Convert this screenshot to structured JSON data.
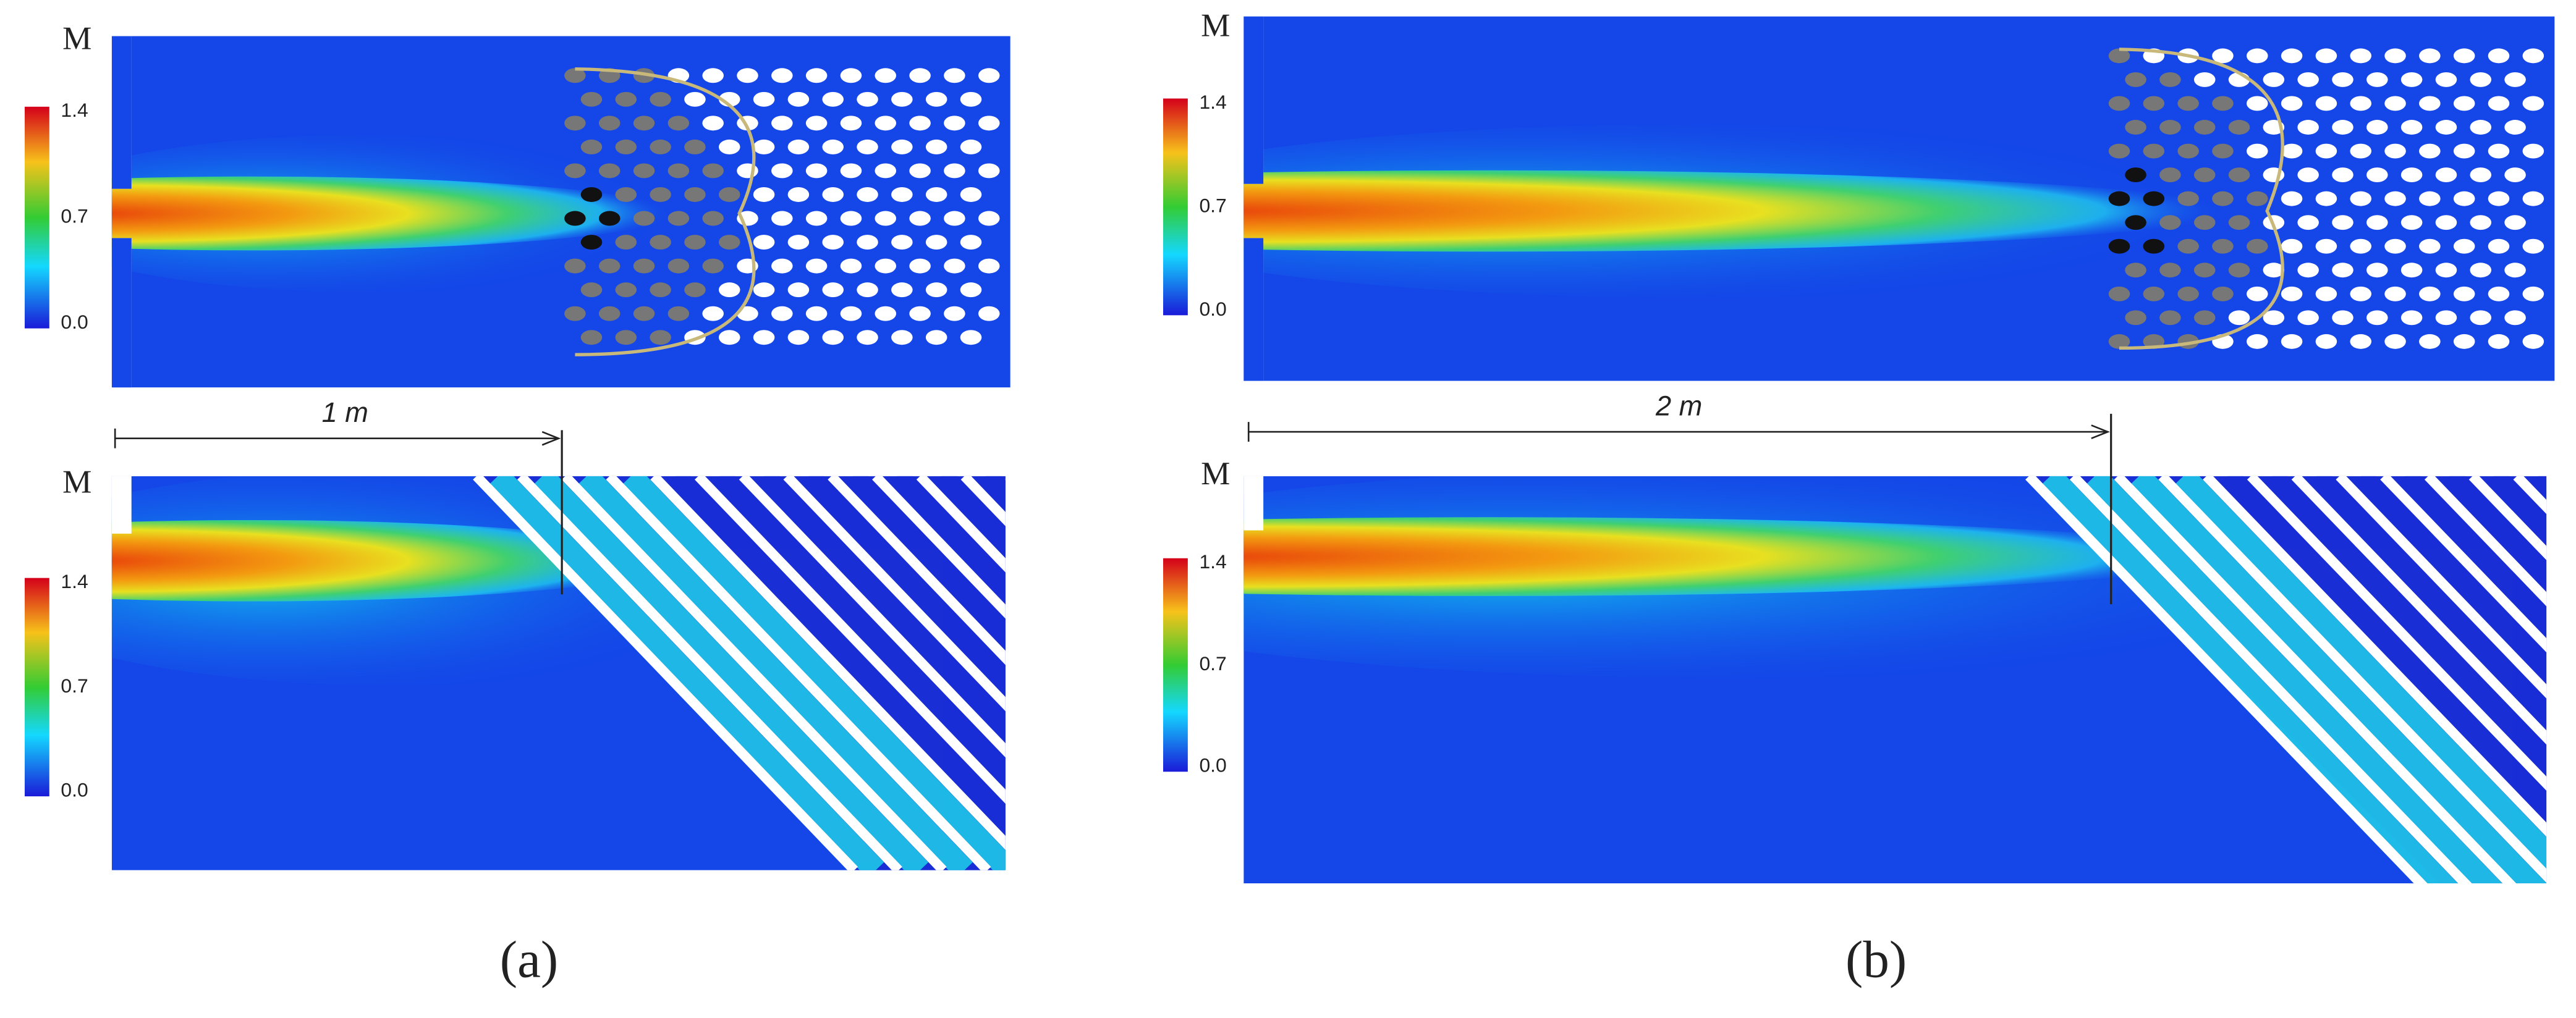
{
  "panels": [
    {
      "label": "(a)",
      "distance": "1 m",
      "plots": [
        {
          "colorbar_title": "M",
          "ticks": [
            "1.4",
            "0.7",
            "0.0"
          ]
        },
        {
          "colorbar_title": "M",
          "ticks": [
            "1.4",
            "0.7",
            "0.0"
          ]
        }
      ]
    },
    {
      "label": "(b)",
      "distance": "2 m",
      "plots": [
        {
          "colorbar_title": "M",
          "ticks": [
            "1.4",
            "0.7",
            "0.0"
          ]
        },
        {
          "colorbar_title": "M",
          "ticks": [
            "1.4",
            "0.7",
            "0.0"
          ]
        }
      ]
    }
  ]
}
